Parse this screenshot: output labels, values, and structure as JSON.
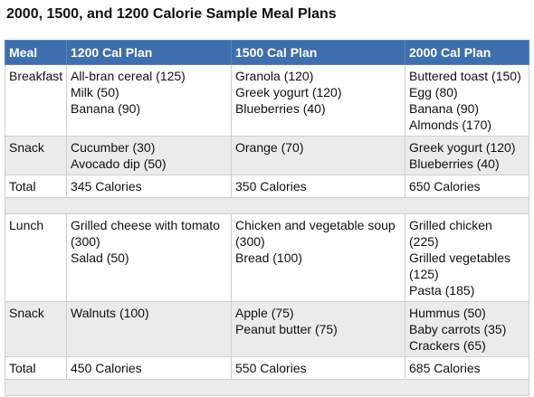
{
  "title": "2000, 1500, and 1200 Calorie Sample Meal Plans",
  "table": {
    "header": [
      "Meal",
      "1200 Cal Plan",
      "1500 Cal Plan",
      "2000 Cal Plan"
    ],
    "groups": [
      {
        "rows": [
          [
            [
              "Breakfast"
            ],
            [
              "All-bran cereal (125)",
              "Milk (50)",
              "Banana (90)"
            ],
            [
              "Granola (120)",
              "Greek yogurt (120)",
              "Blueberries (40)"
            ],
            [
              "Buttered toast (150)",
              "Egg (80)",
              "Banana (90)",
              "Almonds (170)"
            ]
          ],
          [
            [
              "Snack"
            ],
            [
              "Cucumber (30)",
              "Avocado dip (50)"
            ],
            [
              "Orange (70)"
            ],
            [
              "Greek yogurt (120)",
              "Blueberries (40)"
            ]
          ],
          [
            [
              "Total"
            ],
            [
              "345 Calories"
            ],
            [
              "350 Calories"
            ],
            [
              "650 Calories"
            ]
          ]
        ]
      },
      {
        "rows": [
          [
            [
              "Lunch"
            ],
            [
              "Grilled cheese with tomato (300)",
              "Salad (50)"
            ],
            [
              "Chicken and vegetable soup (300)",
              "Bread (100)"
            ],
            [
              "Grilled chicken (225)",
              "Grilled vegetables (125)",
              "Pasta (185)"
            ]
          ],
          [
            [
              "Snack"
            ],
            [
              "Walnuts (100)"
            ],
            [
              "Apple (75)",
              "Peanut butter (75)"
            ],
            [
              "Hummus (50)",
              "Baby carrots (35)",
              "Crackers (65)"
            ]
          ],
          [
            [
              "Total"
            ],
            [
              "450 Calories"
            ],
            [
              "550 Calories"
            ],
            [
              "685 Calories"
            ]
          ]
        ]
      }
    ]
  }
}
